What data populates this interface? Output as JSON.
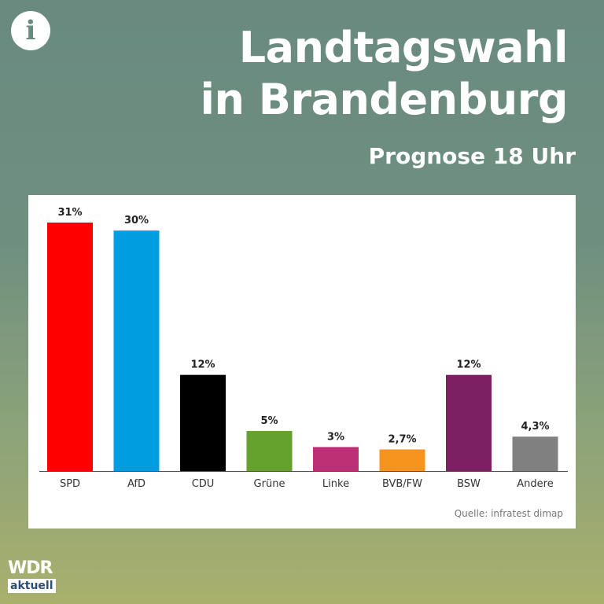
{
  "header": {
    "info_icon": "info-icon",
    "title_line1": "Landtagswahl",
    "title_line2": "in Brandenburg",
    "subtitle": "Prognose 18 Uhr"
  },
  "chart_data": {
    "type": "bar",
    "categories": [
      "SPD",
      "AfD",
      "CDU",
      "Grüne",
      "Linke",
      "BVB/FW",
      "BSW",
      "Andere"
    ],
    "values": [
      31,
      30,
      12,
      5,
      3,
      2.7,
      12,
      4.3
    ],
    "value_labels": [
      "31%",
      "30%",
      "12%",
      "5%",
      "3%",
      "2,7%",
      "12%",
      "4,3%"
    ],
    "colors": [
      "#ff0000",
      "#009ee0",
      "#000000",
      "#64a12d",
      "#be3075",
      "#f7941d",
      "#7b2163",
      "#808080"
    ],
    "ylim": [
      0,
      31
    ],
    "grid": false,
    "legend": "none"
  },
  "source": "Quelle: infratest dimap",
  "logo": {
    "wdr": "WDR",
    "aktuell": "aktuell"
  }
}
